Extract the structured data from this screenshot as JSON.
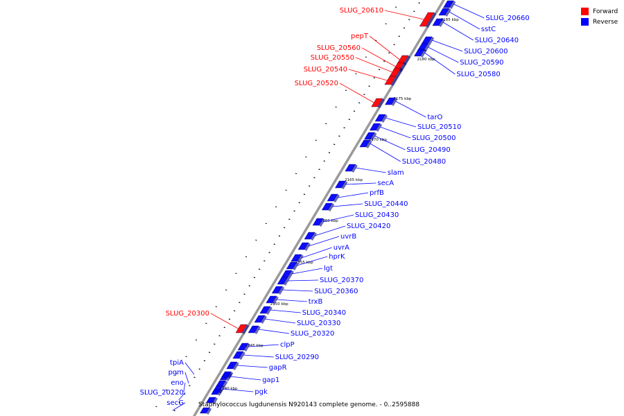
{
  "title": "Staphylococcus lugdunensis N920143 complete genome. - 0..2595888",
  "legend": {
    "forward": {
      "label": "Forward",
      "color": "#ff0000"
    },
    "reverse": {
      "label": "Reverse",
      "color": "#0000ff"
    }
  },
  "colors": {
    "forward": "#ff0000",
    "reverse": "#0000ff",
    "axis": "#9a9a9a",
    "marker": "#000000"
  },
  "ticks": [
    "2185 kbp",
    "2180 kbp",
    "2175 kbp",
    "2170 kbp",
    "2165 kbp",
    "2160 kbp",
    "2155 kbp",
    "2150 kbp",
    "2145 kbp",
    "2140 kbp"
  ],
  "forward_genes": [
    "SLUG_20610",
    "pepT",
    "SLUG_20560",
    "SLUG_20550",
    "SLUG_20540",
    "SLUG_20520",
    "SLUG_20300"
  ],
  "reverse_genes_right": [
    "SLUG_20660",
    "sstC",
    "SLUG_20640",
    "SLUG_20600",
    "SLUG_20590",
    "SLUG_20580",
    "tarO",
    "SLUG_20510",
    "SLUG_20500",
    "SLUG_20490",
    "SLUG_20480",
    "slam",
    "secA",
    "prfB",
    "SLUG_20440",
    "SLUG_20430",
    "SLUG_20420",
    "uvrB",
    "uvrA",
    "hprK",
    "lgt",
    "SLUG_20370",
    "SLUG_20360",
    "trxB",
    "SLUG_20340",
    "SLUG_20330",
    "SLUG_20320",
    "clpP",
    "SLUG_20290",
    "gapR",
    "gap1",
    "pgk"
  ],
  "reverse_genes_left": [
    "tpiA",
    "pgm",
    "eno",
    "SLUG_20220",
    "secG"
  ]
}
